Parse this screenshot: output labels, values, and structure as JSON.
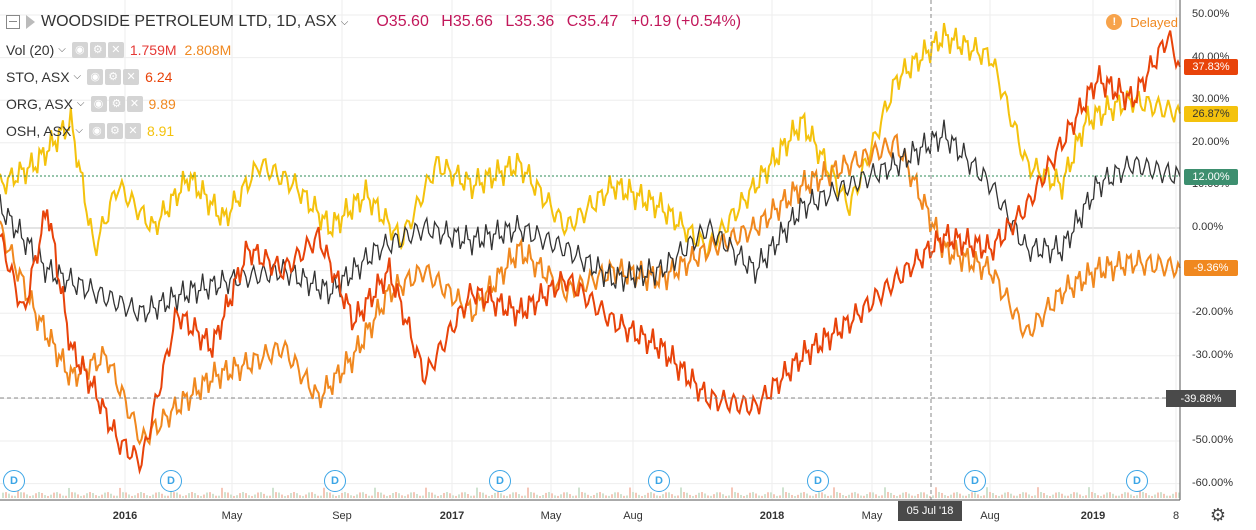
{
  "header": {
    "symbol": "WOODSIDE PETROLEUM LTD, 1D, ASX",
    "open": "O35.60",
    "high": "H35.66",
    "low": "L35.36",
    "close": "C35.47",
    "change": "+0.19 (+0.54%)"
  },
  "legend": [
    {
      "label": "Vol (20)",
      "values": [
        "1.759M",
        "2.808M"
      ],
      "colors": [
        "#e53935",
        "#f0881f"
      ]
    },
    {
      "label": "STO, ASX",
      "values": [
        "6.24"
      ],
      "colors": [
        "#e8430a"
      ]
    },
    {
      "label": "ORG, ASX",
      "values": [
        "9.89"
      ],
      "colors": [
        "#f0881f"
      ]
    },
    {
      "label": "OSH, ASX",
      "values": [
        "8.91"
      ],
      "colors": [
        "#f4c20d"
      ]
    }
  ],
  "delayed": {
    "label": "Delayed",
    "icon": "clock-icon"
  },
  "crosshair": {
    "y_label": "-39.88%",
    "x_label": "05 Jul '18"
  },
  "dividend_marker": "D",
  "chart_data": {
    "type": "line",
    "title": "WOODSIDE PETROLEUM LTD, 1D, ASX",
    "x_ticks": [
      "2016",
      "May",
      "Sep",
      "2017",
      "May",
      "Aug",
      "2018",
      "May",
      "Aug",
      "2019",
      "8"
    ],
    "y_ticks": [
      "50.00%",
      "40.00%",
      "30.00%",
      "20.00%",
      "10.00%",
      "0.00%",
      "-10.00%",
      "-20.00%",
      "-30.00%",
      "-40.00%",
      "-50.00%",
      "-60.00%"
    ],
    "ylim": [
      -62,
      52
    ],
    "x_range": [
      "2015-08",
      "2019-03"
    ],
    "grid": true,
    "baseline_label": "12.00%",
    "series": [
      {
        "name": "STO, ASX",
        "color": "#e8430a",
        "last_label": "37.83%",
        "x": [
          0,
          2,
          4,
          6,
          8,
          10,
          12,
          15,
          18,
          21,
          24,
          27,
          30,
          33,
          36,
          40,
          44,
          48,
          52,
          56,
          60,
          64,
          68,
          72,
          76,
          80,
          84,
          87,
          90,
          93,
          96,
          99,
          100
        ],
        "y": [
          -2,
          -20,
          5,
          -28,
          -38,
          -50,
          -55,
          -20,
          -28,
          -5,
          -10,
          -2,
          -22,
          -10,
          -35,
          -15,
          -20,
          -12,
          -22,
          -28,
          -40,
          -42,
          -30,
          -22,
          -12,
          -2,
          -5,
          5,
          20,
          35,
          30,
          45,
          37.83
        ]
      },
      {
        "name": "ORG, ASX",
        "color": "#f0881f",
        "last_label": "-9.36%",
        "x": [
          0,
          3,
          6,
          9,
          12,
          15,
          18,
          21,
          24,
          27,
          30,
          33,
          36,
          40,
          44,
          48,
          52,
          56,
          60,
          64,
          68,
          72,
          76,
          80,
          84,
          87,
          90,
          93,
          96,
          100
        ],
        "y": [
          0,
          -20,
          -35,
          -30,
          -50,
          -42,
          -35,
          -32,
          -28,
          -40,
          -30,
          -15,
          -10,
          -20,
          -5,
          -15,
          -10,
          -12,
          -5,
          0,
          10,
          15,
          20,
          -5,
          -10,
          -25,
          -15,
          -10,
          -8,
          -9.36
        ]
      },
      {
        "name": "OSH, ASX",
        "color": "#f4c20d",
        "last_label": "26.87%",
        "x": [
          0,
          3,
          6,
          8,
          10,
          13,
          16,
          19,
          22,
          25,
          28,
          31,
          34,
          37,
          40,
          44,
          48,
          52,
          56,
          60,
          64,
          68,
          72,
          76,
          80,
          84,
          87,
          90,
          92,
          94,
          96,
          100
        ],
        "y": [
          10,
          15,
          25,
          -5,
          10,
          0,
          12,
          2,
          15,
          10,
          0,
          8,
          -3,
          15,
          10,
          15,
          0,
          10,
          5,
          -5,
          10,
          25,
          5,
          35,
          45,
          40,
          15,
          10,
          25,
          28,
          30,
          26.87
        ]
      },
      {
        "name": "WOODSIDE PETROLEUM LTD",
        "color": "#333333",
        "last_label": "12.00%",
        "x": [
          0,
          4,
          8,
          12,
          16,
          20,
          24,
          28,
          32,
          36,
          40,
          44,
          48,
          52,
          56,
          60,
          64,
          68,
          72,
          76,
          80,
          84,
          87,
          90,
          93,
          96,
          100
        ],
        "y": [
          5,
          -10,
          -15,
          -20,
          -15,
          -12,
          -10,
          -15,
          -5,
          0,
          -3,
          0,
          -5,
          -12,
          -10,
          0,
          -10,
          5,
          10,
          15,
          22,
          10,
          -5,
          -5,
          10,
          15,
          12
        ]
      }
    ]
  }
}
